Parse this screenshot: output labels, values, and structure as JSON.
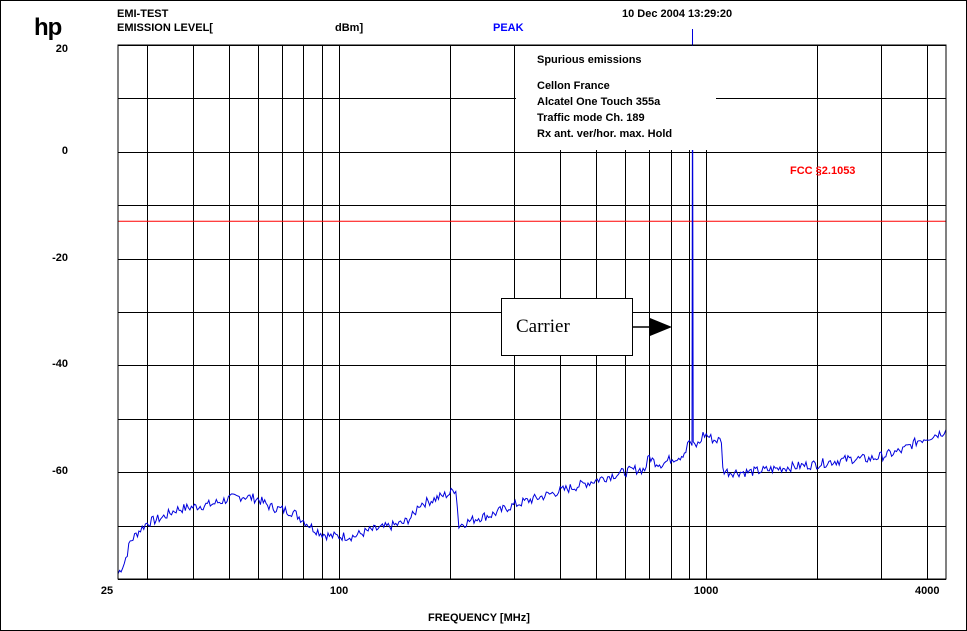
{
  "header": {
    "logo": "hp",
    "test_name": "EMI-TEST",
    "emission_level": "EMISSION LEVEL[",
    "unit": "dBm]",
    "detector": "PEAK",
    "datetime": "10 Dec 2004  13:29:20"
  },
  "info_box": {
    "title": "Spurious emissions",
    "lines": [
      "Cellon France",
      "Alcatel One Touch 355a",
      "Traffic mode Ch. 189",
      "Rx ant. ver/hor.  max. Hold"
    ]
  },
  "annotation": {
    "carrier": "Carrier",
    "limit_label": "FCC §2.1053"
  },
  "chart_data": {
    "type": "line",
    "title": "",
    "xlabel": "FREQUENCY [MHz]",
    "ylabel": "EMISSION LEVEL[ dBm]",
    "x_scale": "log",
    "xlim": [
      25,
      4500
    ],
    "ylim": [
      -80,
      20
    ],
    "x_ticks": [
      {
        "value": 25,
        "label": "25"
      },
      {
        "value": 100,
        "label": "100"
      },
      {
        "value": 1000,
        "label": "1000"
      },
      {
        "value": 4000,
        "label": "4000"
      }
    ],
    "y_ticks": [
      {
        "value": 20,
        "label": "20"
      },
      {
        "value": 0,
        "label": "0"
      },
      {
        "value": -20,
        "label": "-20"
      },
      {
        "value": -40,
        "label": "-40"
      },
      {
        "value": -60,
        "label": "-60"
      }
    ],
    "y_grid_step": 10,
    "x_gridlines": [
      30,
      40,
      50,
      60,
      70,
      80,
      90,
      100,
      200,
      300,
      400,
      500,
      600,
      700,
      800,
      900,
      1000,
      2000,
      3000,
      4000
    ],
    "grid": true,
    "limit_line": {
      "name": "FCC §2.1053",
      "value": -13,
      "color": "#ff0000"
    },
    "series": [
      {
        "color": "#0000dd",
        "points": [
          [
            25,
            -79
          ],
          [
            26,
            -77
          ],
          [
            27,
            -73
          ],
          [
            28.5,
            -71
          ],
          [
            30,
            -69.5
          ],
          [
            33,
            -68.5
          ],
          [
            36,
            -67
          ],
          [
            40,
            -66.5
          ],
          [
            45,
            -66
          ],
          [
            50,
            -65
          ],
          [
            55,
            -64.5
          ],
          [
            60,
            -65
          ],
          [
            65,
            -66.5
          ],
          [
            70,
            -67
          ],
          [
            75,
            -67.5
          ],
          [
            80,
            -69
          ],
          [
            85,
            -70.5
          ],
          [
            90,
            -71.5
          ],
          [
            95,
            -72
          ],
          [
            100,
            -72
          ],
          [
            110,
            -72
          ],
          [
            120,
            -71
          ],
          [
            130,
            -70.5
          ],
          [
            140,
            -70
          ],
          [
            150,
            -69.5
          ],
          [
            160,
            -68
          ],
          [
            165,
            -66
          ],
          [
            175,
            -65.5
          ],
          [
            190,
            -64.5
          ],
          [
            200,
            -64
          ],
          [
            208,
            -63
          ],
          [
            212,
            -70
          ],
          [
            220,
            -69.5
          ],
          [
            240,
            -68.5
          ],
          [
            260,
            -68
          ],
          [
            290,
            -66.5
          ],
          [
            320,
            -65.5
          ],
          [
            360,
            -64.5
          ],
          [
            400,
            -63.5
          ],
          [
            450,
            -62.5
          ],
          [
            500,
            -61.5
          ],
          [
            560,
            -60.5
          ],
          [
            600,
            -60
          ],
          [
            640,
            -59.5
          ],
          [
            680,
            -59.5
          ],
          [
            700,
            -57
          ],
          [
            720,
            -58
          ],
          [
            760,
            -58.5
          ],
          [
            800,
            -57.5
          ],
          [
            850,
            -57
          ],
          [
            880,
            -56
          ],
          [
            900,
            -54
          ],
          [
            915,
            -55
          ],
          [
            918,
            23
          ],
          [
            922,
            -55
          ],
          [
            940,
            -55
          ],
          [
            960,
            -54.5
          ],
          [
            980,
            -53
          ],
          [
            1000,
            -53
          ],
          [
            1050,
            -54
          ],
          [
            1100,
            -54
          ],
          [
            1110,
            -59.5
          ],
          [
            1150,
            -60
          ],
          [
            1300,
            -60
          ],
          [
            1500,
            -59.5
          ],
          [
            1700,
            -59
          ],
          [
            2000,
            -58.5
          ],
          [
            2200,
            -58
          ],
          [
            2500,
            -57.5
          ],
          [
            2800,
            -57.5
          ],
          [
            3000,
            -57
          ],
          [
            3200,
            -56.5
          ],
          [
            3400,
            -56
          ],
          [
            3600,
            -55
          ],
          [
            3800,
            -54
          ],
          [
            4000,
            -53.5
          ],
          [
            4200,
            -53
          ],
          [
            4400,
            -52.5
          ],
          [
            4500,
            -52
          ]
        ]
      }
    ]
  }
}
